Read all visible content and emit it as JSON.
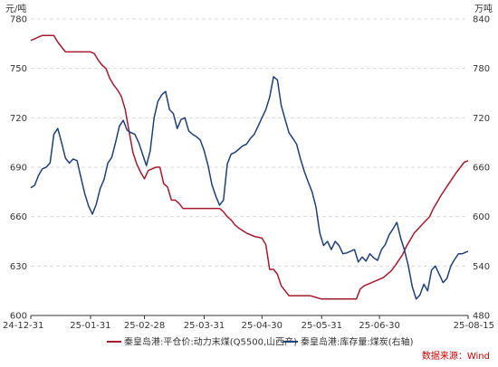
{
  "chart_data": {
    "type": "line",
    "y_unit_left": "元/吨",
    "y_unit_right": "万吨",
    "ylim_left": [
      600,
      780
    ],
    "ylim_right": [
      480,
      840
    ],
    "yticks_left": [
      600,
      630,
      660,
      690,
      720,
      750,
      780
    ],
    "yticks_right": [
      480,
      540,
      600,
      660,
      720,
      780,
      840
    ],
    "xlim": [
      "2024-12-31",
      "2025-08-15"
    ],
    "xtick_labels": [
      "24-12-31",
      "25-01-31",
      "25-02-28",
      "25-03-31",
      "25-04-30",
      "25-05-31",
      "25-06-30",
      "25-08-15"
    ],
    "xtick_dates": [
      "2024-12-31",
      "2025-01-31",
      "2025-02-28",
      "2025-03-31",
      "2025-04-30",
      "2025-05-31",
      "2025-06-30",
      "2025-08-15"
    ],
    "grid": true,
    "legend_position": "bottom",
    "series": [
      {
        "name": "秦皇岛港:平仓价:动力末煤(Q5500,山西产)",
        "axis": "left",
        "color": "#a6192e",
        "x": [
          "2024-12-31",
          "2025-01-02",
          "2025-01-04",
          "2025-01-06",
          "2025-01-08",
          "2025-01-12",
          "2025-01-14",
          "2025-01-16",
          "2025-01-18",
          "2025-01-27",
          "2025-01-29",
          "2025-01-31",
          "2025-02-02",
          "2025-02-04",
          "2025-02-06",
          "2025-02-08",
          "2025-02-10",
          "2025-02-12",
          "2025-02-14",
          "2025-02-16",
          "2025-02-18",
          "2025-02-20",
          "2025-02-22",
          "2025-02-24",
          "2025-02-26",
          "2025-02-28",
          "2025-03-02",
          "2025-03-04",
          "2025-03-06",
          "2025-03-08",
          "2025-03-10",
          "2025-03-12",
          "2025-03-14",
          "2025-03-16",
          "2025-03-18",
          "2025-03-20",
          "2025-03-25",
          "2025-03-31",
          "2025-04-06",
          "2025-04-08",
          "2025-04-10",
          "2025-04-12",
          "2025-04-14",
          "2025-04-16",
          "2025-04-18",
          "2025-04-22",
          "2025-04-26",
          "2025-04-30",
          "2025-05-02",
          "2025-05-04",
          "2025-05-06",
          "2025-05-08",
          "2025-05-10",
          "2025-05-12",
          "2025-05-14",
          "2025-05-16",
          "2025-05-20",
          "2025-05-25",
          "2025-05-31",
          "2025-06-02",
          "2025-06-06",
          "2025-06-12",
          "2025-06-18",
          "2025-06-20",
          "2025-06-22",
          "2025-06-26",
          "2025-06-30",
          "2025-07-02",
          "2025-07-06",
          "2025-07-08",
          "2025-07-12",
          "2025-07-14",
          "2025-07-18",
          "2025-07-22",
          "2025-07-26",
          "2025-07-28",
          "2025-08-01",
          "2025-08-05",
          "2025-08-09",
          "2025-08-11",
          "2025-08-13",
          "2025-08-15"
        ],
        "y": [
          767,
          768,
          769,
          770,
          770,
          770,
          766,
          763,
          760,
          760,
          760,
          760,
          759,
          755,
          752,
          750,
          744,
          740,
          737,
          733,
          725,
          712,
          699,
          692,
          687,
          683,
          688,
          689,
          690,
          690,
          680,
          678,
          670,
          670,
          668,
          665,
          665,
          665,
          665,
          665,
          663,
          660,
          658,
          655,
          653,
          650,
          648,
          647,
          643,
          628,
          628,
          625,
          618,
          615,
          612,
          612,
          612,
          612,
          610,
          610,
          610,
          610,
          610,
          616,
          618,
          620,
          622,
          623,
          627,
          630,
          637,
          642,
          650,
          655,
          660,
          665,
          673,
          680,
          687,
          690,
          693,
          694
        ]
      },
      {
        "name": "秦皇岛港:库存量:煤炭(右轴)",
        "axis": "right",
        "color": "#1f3f77",
        "x": [
          "2024-12-31",
          "2025-01-02",
          "2025-01-04",
          "2025-01-06",
          "2025-01-08",
          "2025-01-10",
          "2025-01-12",
          "2025-01-14",
          "2025-01-16",
          "2025-01-18",
          "2025-01-20",
          "2025-01-22",
          "2025-01-24",
          "2025-01-26",
          "2025-01-28",
          "2025-01-30",
          "2025-02-01",
          "2025-02-03",
          "2025-02-05",
          "2025-02-07",
          "2025-02-09",
          "2025-02-11",
          "2025-02-13",
          "2025-02-15",
          "2025-02-17",
          "2025-02-19",
          "2025-02-21",
          "2025-02-23",
          "2025-02-25",
          "2025-02-27",
          "2025-03-01",
          "2025-03-03",
          "2025-03-05",
          "2025-03-07",
          "2025-03-09",
          "2025-03-11",
          "2025-03-13",
          "2025-03-15",
          "2025-03-17",
          "2025-03-19",
          "2025-03-21",
          "2025-03-23",
          "2025-03-25",
          "2025-03-27",
          "2025-03-29",
          "2025-03-31",
          "2025-04-02",
          "2025-04-04",
          "2025-04-06",
          "2025-04-08",
          "2025-04-10",
          "2025-04-12",
          "2025-04-14",
          "2025-04-16",
          "2025-04-18",
          "2025-04-20",
          "2025-04-22",
          "2025-04-24",
          "2025-04-26",
          "2025-04-28",
          "2025-04-30",
          "2025-05-02",
          "2025-05-04",
          "2025-05-06",
          "2025-05-08",
          "2025-05-10",
          "2025-05-12",
          "2025-05-14",
          "2025-05-16",
          "2025-05-18",
          "2025-05-20",
          "2025-05-22",
          "2025-05-24",
          "2025-05-26",
          "2025-05-28",
          "2025-05-30",
          "2025-06-01",
          "2025-06-03",
          "2025-06-05",
          "2025-06-07",
          "2025-06-09",
          "2025-06-11",
          "2025-06-13",
          "2025-06-15",
          "2025-06-17",
          "2025-06-19",
          "2025-06-21",
          "2025-06-23",
          "2025-06-25",
          "2025-06-27",
          "2025-06-29",
          "2025-07-01",
          "2025-07-03",
          "2025-07-05",
          "2025-07-07",
          "2025-07-09",
          "2025-07-11",
          "2025-07-13",
          "2025-07-15",
          "2025-07-17",
          "2025-07-19",
          "2025-07-21",
          "2025-07-23",
          "2025-07-25",
          "2025-07-27",
          "2025-07-29",
          "2025-07-31",
          "2025-08-02",
          "2025-08-04",
          "2025-08-06",
          "2025-08-08",
          "2025-08-10",
          "2025-08-12",
          "2025-08-14",
          "2025-08-15"
        ],
        "y": [
          635,
          638,
          650,
          658,
          660,
          665,
          700,
          707,
          690,
          671,
          665,
          670,
          668,
          648,
          628,
          613,
          603,
          615,
          634,
          645,
          665,
          672,
          690,
          710,
          717,
          705,
          702,
          700,
          690,
          676,
          662,
          680,
          720,
          740,
          748,
          752,
          730,
          725,
          707,
          718,
          720,
          704,
          700,
          697,
          693,
          680,
          662,
          639,
          625,
          614,
          620,
          664,
          676,
          678,
          682,
          686,
          688,
          695,
          700,
          710,
          720,
          730,
          745,
          770,
          766,
          735,
          718,
          702,
          695,
          688,
          670,
          655,
          642,
          630,
          612,
          580,
          565,
          570,
          560,
          570,
          565,
          555,
          556,
          558,
          560,
          545,
          551,
          546,
          555,
          550,
          547,
          560,
          566,
          578,
          585,
          593,
          574,
          559,
          540,
          515,
          500,
          505,
          518,
          510,
          535,
          540,
          530,
          520,
          525,
          540,
          548,
          555,
          555,
          557,
          558
        ]
      }
    ],
    "legend": [
      {
        "label": "秦皇岛港:平仓价:动力末煤(Q5500,山西产)",
        "color": "#a6192e"
      },
      {
        "label": "秦皇岛港:库存量:煤炭(右轴)",
        "color": "#1f3f77"
      }
    ],
    "source": "数据来源：Wind"
  }
}
